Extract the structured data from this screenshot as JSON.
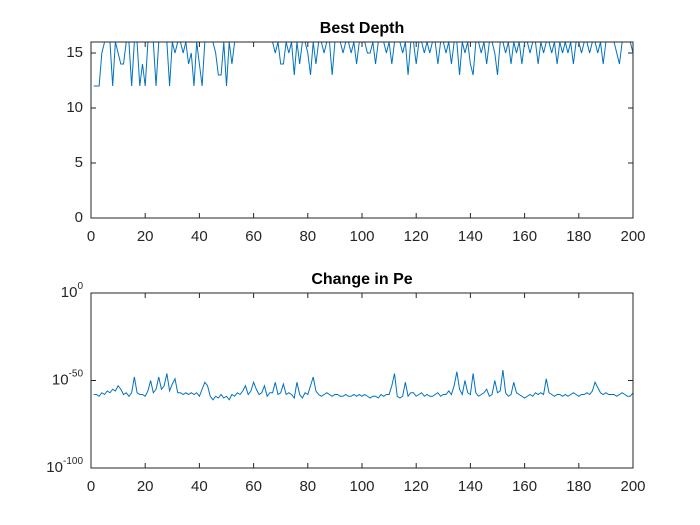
{
  "chart_data": [
    {
      "type": "line",
      "title": "Best Depth",
      "color": "#0072bd",
      "x": [
        1,
        2,
        3,
        4,
        5,
        6,
        7,
        8,
        9,
        10,
        11,
        12,
        13,
        14,
        15,
        16,
        17,
        18,
        19,
        20,
        21,
        22,
        23,
        24,
        25,
        26,
        27,
        28,
        29,
        30,
        31,
        32,
        33,
        34,
        35,
        36,
        37,
        38,
        39,
        40,
        41,
        42,
        43,
        44,
        45,
        46,
        47,
        48,
        49,
        50,
        51,
        52,
        53,
        54,
        55,
        56,
        57,
        58,
        59,
        60,
        61,
        62,
        63,
        64,
        65,
        66,
        67,
        68,
        69,
        70,
        71,
        72,
        73,
        74,
        75,
        76,
        77,
        78,
        79,
        80,
        81,
        82,
        83,
        84,
        85,
        86,
        87,
        88,
        89,
        90,
        91,
        92,
        93,
        94,
        95,
        96,
        97,
        98,
        99,
        100,
        101,
        102,
        103,
        104,
        105,
        106,
        107,
        108,
        109,
        110,
        111,
        112,
        113,
        114,
        115,
        116,
        117,
        118,
        119,
        120,
        121,
        122,
        123,
        124,
        125,
        126,
        127,
        128,
        129,
        130,
        131,
        132,
        133,
        134,
        135,
        136,
        137,
        138,
        139,
        140,
        141,
        142,
        143,
        144,
        145,
        146,
        147,
        148,
        149,
        150,
        151,
        152,
        153,
        154,
        155,
        156,
        157,
        158,
        159,
        160,
        161,
        162,
        163,
        164,
        165,
        166,
        167,
        168,
        169,
        170,
        171,
        172,
        173,
        174,
        175,
        176,
        177,
        178,
        179,
        180,
        181,
        182,
        183,
        184,
        185,
        186,
        187,
        188,
        189,
        190,
        191,
        192,
        193,
        194,
        195,
        196,
        197,
        198,
        199,
        200
      ],
      "values": [
        12,
        12,
        12,
        15,
        16,
        16,
        16,
        12,
        16,
        15,
        14,
        14,
        16,
        16,
        12,
        16,
        16,
        12,
        14,
        12,
        16,
        16,
        16,
        12,
        16,
        16,
        16,
        16,
        12,
        16,
        15,
        16,
        16,
        15,
        16,
        14,
        15,
        12,
        16,
        14,
        12,
        16,
        16,
        16,
        16,
        15,
        13,
        13,
        16,
        12,
        16,
        14,
        16,
        16,
        16,
        16,
        16,
        16,
        16,
        16,
        16,
        16,
        16,
        16,
        16,
        16,
        16,
        15,
        16,
        14,
        14,
        16,
        15,
        16,
        13,
        16,
        14,
        16,
        16,
        15,
        13,
        16,
        14,
        16,
        16,
        15,
        16,
        16,
        13,
        16,
        16,
        16,
        15,
        16,
        16,
        15,
        16,
        14,
        16,
        16,
        16,
        15,
        15,
        16,
        14,
        16,
        16,
        16,
        15,
        16,
        14,
        16,
        16,
        16,
        15,
        16,
        13,
        16,
        16,
        14,
        16,
        16,
        15,
        16,
        15,
        16,
        16,
        14,
        16,
        16,
        15,
        16,
        14,
        16,
        16,
        13,
        16,
        15,
        16,
        14,
        13,
        16,
        16,
        15,
        16,
        14,
        16,
        16,
        15,
        13,
        16,
        16,
        15,
        16,
        14,
        16,
        15,
        16,
        14,
        16,
        16,
        15,
        16,
        16,
        14,
        16,
        15,
        16,
        16,
        15,
        16,
        14,
        16,
        15,
        16,
        15,
        16,
        14,
        16,
        16,
        15,
        16,
        16,
        15,
        16,
        16,
        15,
        16,
        14,
        16,
        16,
        16,
        16,
        15,
        14,
        16,
        16,
        16,
        16,
        15
      ],
      "xlim": [
        0,
        200
      ],
      "xticks": [
        0,
        20,
        40,
        60,
        80,
        100,
        120,
        140,
        160,
        180,
        200
      ],
      "ylim": [
        0,
        16
      ],
      "yticks": [
        0,
        5,
        10,
        15
      ]
    },
    {
      "type": "line",
      "title": "Change in Pe",
      "color": "#0072bd",
      "yscale": "log",
      "x": [
        1,
        2,
        3,
        4,
        5,
        6,
        7,
        8,
        9,
        10,
        11,
        12,
        13,
        14,
        15,
        16,
        17,
        18,
        19,
        20,
        21,
        22,
        23,
        24,
        25,
        26,
        27,
        28,
        29,
        30,
        31,
        32,
        33,
        34,
        35,
        36,
        37,
        38,
        39,
        40,
        41,
        42,
        43,
        44,
        45,
        46,
        47,
        48,
        49,
        50,
        51,
        52,
        53,
        54,
        55,
        56,
        57,
        58,
        59,
        60,
        61,
        62,
        63,
        64,
        65,
        66,
        67,
        68,
        69,
        70,
        71,
        72,
        73,
        74,
        75,
        76,
        77,
        78,
        79,
        80,
        81,
        82,
        83,
        84,
        85,
        86,
        87,
        88,
        89,
        90,
        91,
        92,
        93,
        94,
        95,
        96,
        97,
        98,
        99,
        100,
        101,
        102,
        103,
        104,
        105,
        106,
        107,
        108,
        109,
        110,
        111,
        112,
        113,
        114,
        115,
        116,
        117,
        118,
        119,
        120,
        121,
        122,
        123,
        124,
        125,
        126,
        127,
        128,
        129,
        130,
        131,
        132,
        133,
        134,
        135,
        136,
        137,
        138,
        139,
        140,
        141,
        142,
        143,
        144,
        145,
        146,
        147,
        148,
        149,
        150,
        151,
        152,
        153,
        154,
        155,
        156,
        157,
        158,
        159,
        160,
        161,
        162,
        163,
        164,
        165,
        166,
        167,
        168,
        169,
        170,
        171,
        172,
        173,
        174,
        175,
        176,
        177,
        178,
        179,
        180,
        181,
        182,
        183,
        184,
        185,
        186,
        187,
        188,
        189,
        190,
        191,
        192,
        193,
        194,
        195,
        196,
        197,
        198,
        199,
        200
      ],
      "values": [
        1e-58,
        1e-58,
        1e-59,
        1e-57,
        1e-58,
        1e-56,
        1e-57,
        1e-55,
        1e-56,
        1e-53,
        1e-55,
        1e-58,
        1e-57,
        1e-59,
        1e-57,
        1e-48,
        1e-57,
        1e-58,
        1e-58,
        1e-59,
        1e-56,
        1e-50,
        1e-57,
        1e-55,
        1e-48,
        1e-55,
        1e-53,
        1e-46,
        1e-56,
        1e-52,
        1e-49,
        1e-57,
        1e-57,
        1e-58,
        1e-57,
        1e-58,
        1e-57,
        1e-58,
        1e-57,
        1e-59,
        1e-55,
        1e-51,
        1e-53,
        1e-59,
        1e-61,
        1e-59,
        1e-60,
        1e-58,
        1e-60,
        1e-59,
        1e-61,
        1e-58,
        1e-59,
        1e-57,
        1e-58,
        1e-56,
        1e-53,
        1e-58,
        1e-56,
        1e-51,
        1e-55,
        1e-58,
        1e-57,
        1e-53,
        1e-59,
        1e-57,
        1e-57,
        1e-51,
        1e-58,
        1e-57,
        1e-52,
        1e-58,
        1e-57,
        1e-58,
        1e-60,
        1e-51,
        1e-58,
        1e-60,
        1e-57,
        1e-58,
        1e-53,
        1e-48,
        1e-56,
        1e-58,
        1e-59,
        1e-58,
        1e-57,
        1e-58,
        1e-59,
        1e-58,
        1e-58,
        1e-59,
        1e-59,
        1e-58,
        1e-59,
        1e-59,
        1e-58,
        1e-59,
        1e-58,
        1e-59,
        1e-58,
        1e-59,
        1e-60,
        1e-59,
        1e-59,
        1e-60,
        1e-58,
        1e-59,
        1e-58,
        1e-58,
        1e-53,
        1e-46,
        1e-59,
        1e-60,
        1e-59,
        1e-51,
        1e-59,
        1e-57,
        1e-57,
        1e-59,
        1e-58,
        1e-57,
        1e-59,
        1e-58,
        1e-59,
        1e-59,
        1e-58,
        1e-57,
        1e-59,
        1e-58,
        1e-58,
        1e-56,
        1e-58,
        1e-53,
        1e-45,
        1e-55,
        1e-58,
        1e-50,
        1e-57,
        1e-58,
        1e-46,
        1e-57,
        1e-59,
        1e-58,
        1e-57,
        1e-55,
        1e-59,
        1e-58,
        1e-50,
        1e-57,
        1e-56,
        1e-44,
        1e-57,
        1e-59,
        1e-58,
        1e-51,
        1e-57,
        1e-58,
        1e-59,
        1e-60,
        1e-59,
        1e-58,
        1e-59,
        1e-57,
        1e-58,
        1e-57,
        1e-58,
        1e-49,
        1e-57,
        1e-58,
        1e-59,
        1e-58,
        1e-58,
        1e-59,
        1e-58,
        1e-59,
        1e-58,
        1e-57,
        1e-58,
        1e-59,
        1e-58,
        1e-58,
        1e-57,
        1e-58,
        1e-56,
        1e-51,
        1e-54,
        1e-57,
        1e-58,
        1e-57,
        1e-58,
        1e-58,
        1e-58,
        1e-59,
        1e-58,
        1e-57,
        1e-58,
        1e-59,
        1e-59,
        1e-57
      ],
      "xlim": [
        0,
        200
      ],
      "xticks": [
        0,
        20,
        40,
        60,
        80,
        100,
        120,
        140,
        160,
        180,
        200
      ],
      "ylim": [
        1e-100,
        1
      ],
      "yticks": [
        {
          "value": 1e-100,
          "label": "10",
          "exponent": "-100"
        },
        {
          "value": 1e-50,
          "label": "10",
          "exponent": "-50"
        },
        {
          "value": 1,
          "label": "10",
          "exponent": "0"
        }
      ]
    }
  ]
}
